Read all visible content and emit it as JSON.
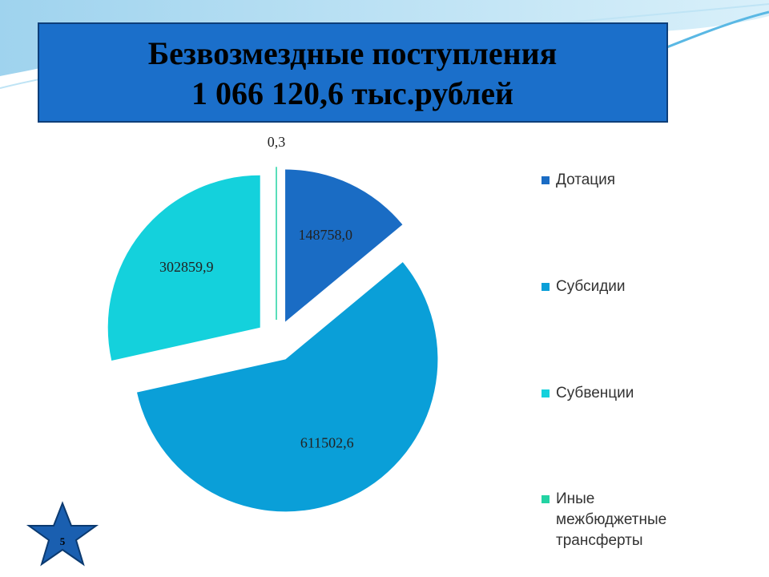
{
  "slide_number": "5",
  "chart_data": {
    "type": "pie",
    "title": "Безвозмездные  поступления",
    "subtitle": "1 066 120,6  тыс.рублей",
    "categories": [
      "Дотация",
      "Субсидии",
      "Субвенции",
      "Иные межбюджетные трансферты"
    ],
    "values": [
      148758.0,
      611502.6,
      302859.9,
      0.3
    ],
    "value_labels": [
      "148758,0",
      "611502,6",
      "302859,9",
      "0,3"
    ],
    "colors": [
      "#1a6cc4",
      "#0a9fd8",
      "#14d1dc",
      "#23d3a3"
    ],
    "legend": "right"
  }
}
